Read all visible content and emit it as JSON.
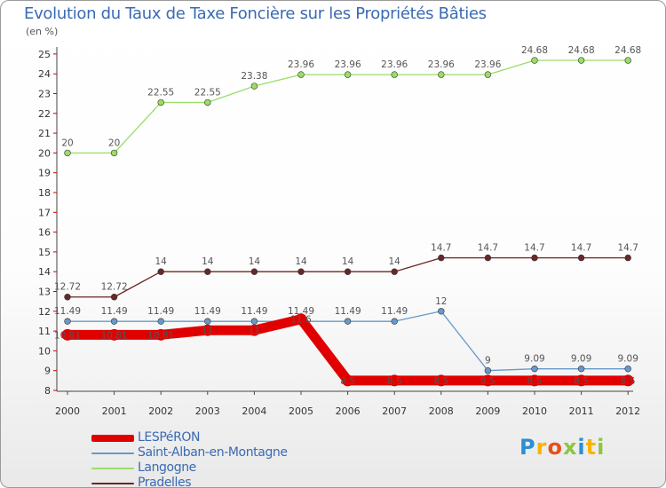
{
  "chart_data": {
    "type": "line",
    "title": "Evolution du Taux de Taxe Foncière sur les Propriétés Bâties",
    "ylabel": "(en %)",
    "xlabel": "",
    "x": [
      "2000",
      "2001",
      "2002",
      "2003",
      "2004",
      "2005",
      "2006",
      "2007",
      "2008",
      "2009",
      "2010",
      "2011",
      "2012"
    ],
    "ylim": [
      8,
      25
    ],
    "yticks": [
      "8",
      "9",
      "10",
      "11",
      "12",
      "13",
      "14",
      "15",
      "16",
      "17",
      "18",
      "19",
      "20",
      "21",
      "22",
      "23",
      "24",
      "25"
    ],
    "series": [
      {
        "name": "LESPéRON",
        "color": "#e10000",
        "values": [
          10.81,
          10.81,
          10.81,
          11.04,
          11.04,
          11.6,
          8.5,
          8.5,
          8.5,
          8.5,
          8.5,
          8.5,
          8.5
        ],
        "labels": [
          "10.81",
          "10.81",
          "10.81",
          "11",
          "11",
          "11.6",
          "8.5",
          "8.5",
          "8.5",
          "8.5",
          "8.5",
          "8.5",
          "8.5"
        ]
      },
      {
        "name": "Saint-Alban-en-Montagne",
        "color": "#6699cc",
        "values": [
          11.49,
          11.49,
          11.49,
          11.49,
          11.49,
          11.49,
          11.49,
          11.49,
          12,
          9,
          9.09,
          9.09,
          9.09
        ],
        "labels": [
          "11.49",
          "11.49",
          "11.49",
          "11.49",
          "11.49",
          "11.49",
          "11.49",
          "11.49",
          "12",
          "9",
          "9.09",
          "9.09",
          "9.09"
        ]
      },
      {
        "name": "Langogne",
        "color": "#99dd66",
        "values": [
          20,
          20,
          22.55,
          22.55,
          23.38,
          23.96,
          23.96,
          23.96,
          23.96,
          23.96,
          24.68,
          24.68,
          24.68
        ],
        "labels": [
          "20",
          "20",
          "22.55",
          "22.55",
          "23.38",
          "23.96",
          "23.96",
          "23.96",
          "23.96",
          "23.96",
          "24.68",
          "24.68",
          "24.68"
        ]
      },
      {
        "name": "Pradelles",
        "color": "#6b2626",
        "values": [
          12.72,
          12.72,
          14,
          14,
          14,
          14,
          14,
          14,
          14.7,
          14.7,
          14.7,
          14.7,
          14.7
        ],
        "labels": [
          "12.72",
          "12.72",
          "14",
          "14",
          "14",
          "14",
          "14",
          "14",
          "14.7",
          "14.7",
          "14.7",
          "14.7",
          "14.7"
        ]
      }
    ]
  },
  "brand": {
    "letters": [
      "P",
      "r",
      "o",
      "x",
      "i",
      "t",
      "i"
    ],
    "colors": [
      "#2a8fd6",
      "#f7b500",
      "#e94e1b",
      "#8cc63f",
      "#2a8fd6",
      "#f7b500",
      "#8cc63f"
    ]
  }
}
